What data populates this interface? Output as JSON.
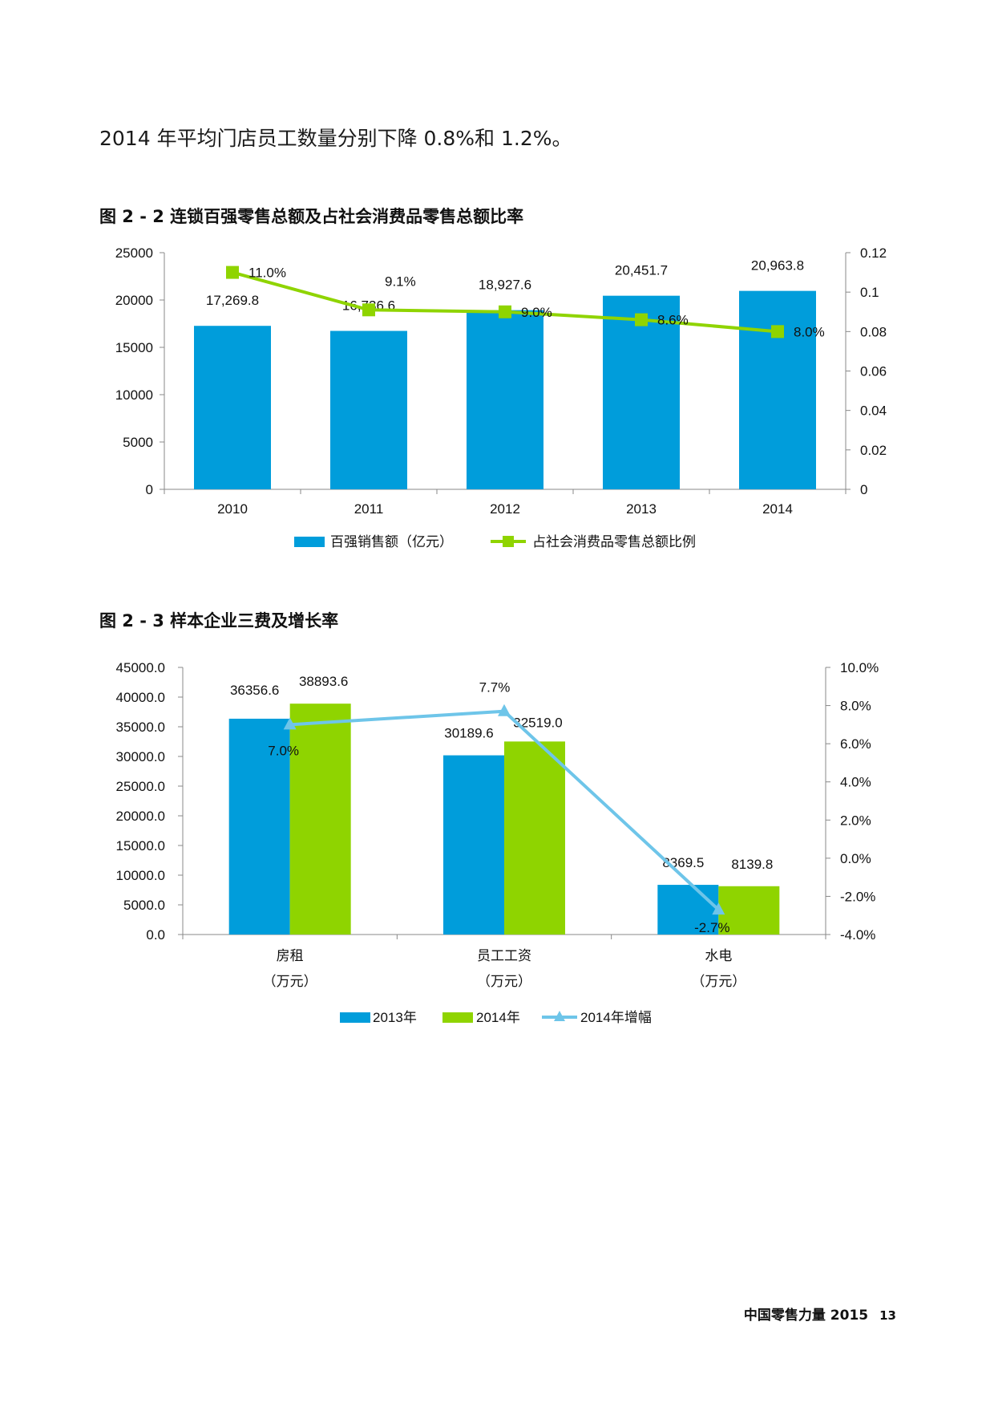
{
  "intro_text": "2014 年平均门店员工数量分别下降 0.8%和 1.2%。",
  "footer": {
    "publication": "中国零售力量 2015",
    "page_number": "13"
  },
  "colors": {
    "blue": "#009ddb",
    "green": "#8fd400",
    "line_green": "#8fd400",
    "line_lightblue": "#6ec5e9"
  },
  "chart_data": [
    {
      "type": "bar",
      "title": "图 2 - 2 连锁百强零售总额及占社会消费品零售总额比率",
      "categories": [
        "2010",
        "2011",
        "2012",
        "2013",
        "2014"
      ],
      "series": [
        {
          "name": "百强销售额（亿元）",
          "type": "bar",
          "axis": "left",
          "values": [
            17269.8,
            16736.6,
            18927.6,
            20451.7,
            20963.8
          ],
          "labels": [
            "17,269.8",
            "16,736.6",
            "18,927.6",
            "20,451.7",
            "20,963.8"
          ]
        },
        {
          "name": "占社会消费品零售总额比例",
          "type": "line",
          "axis": "right",
          "values": [
            0.11,
            0.091,
            0.09,
            0.086,
            0.08
          ],
          "labels": [
            "11.0%",
            "9.1%",
            "9.0%",
            "8.6%",
            "8.0%"
          ]
        }
      ],
      "y_left": {
        "range": [
          0,
          25000
        ],
        "ticks": [
          "0",
          "5000",
          "10000",
          "15000",
          "20000",
          "25000"
        ]
      },
      "y_right": {
        "range": [
          0,
          0.12
        ],
        "ticks": [
          "0",
          "0.02",
          "0.04",
          "0.06",
          "0.08",
          "0.1",
          "0.12"
        ]
      },
      "legend": "bottom",
      "grid": false
    },
    {
      "type": "bar",
      "title": "图 2 - 3 样本企业三费及增长率",
      "categories": [
        "房租",
        "员工工资",
        "水电"
      ],
      "category_units": [
        "（万元）",
        "（万元）",
        "（万元）"
      ],
      "series": [
        {
          "name": "2013年",
          "type": "bar",
          "axis": "left",
          "values": [
            36356.6,
            30189.6,
            8369.5
          ],
          "labels": [
            "36356.6",
            "30189.6",
            "8369.5"
          ]
        },
        {
          "name": "2014年",
          "type": "bar",
          "axis": "left",
          "values": [
            38893.6,
            32519.0,
            8139.8
          ],
          "labels": [
            "38893.6",
            "32519.0",
            "8139.8"
          ]
        },
        {
          "name": "2014年增幅",
          "type": "line",
          "axis": "right",
          "values": [
            0.07,
            0.077,
            -0.027
          ],
          "labels": [
            "7.0%",
            "7.7%",
            "-2.7%"
          ]
        }
      ],
      "y_left": {
        "range": [
          0,
          45000
        ],
        "ticks": [
          "0.0",
          "5000.0",
          "10000.0",
          "15000.0",
          "20000.0",
          "25000.0",
          "30000.0",
          "35000.0",
          "40000.0",
          "45000.0"
        ]
      },
      "y_right": {
        "range": [
          -0.04,
          0.1
        ],
        "ticks": [
          "-4.0%",
          "-2.0%",
          "0.0%",
          "2.0%",
          "4.0%",
          "6.0%",
          "8.0%",
          "10.0%"
        ]
      },
      "legend": "bottom",
      "grid": false
    }
  ]
}
